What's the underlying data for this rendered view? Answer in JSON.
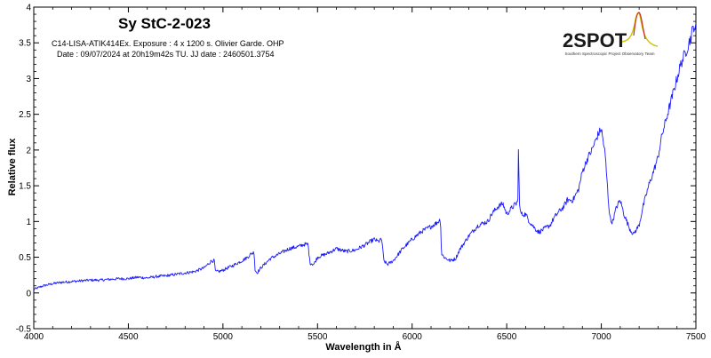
{
  "chart_data": {
    "type": "line",
    "title": "Sy StC-2-023",
    "subtitle_lines": [
      "C14-LISA-ATIK414Ex. Exposure : 4 x 1200 s. Olivier Garde. OHP",
      "Date : 09/07/2024 at 20h19m42s TU. JJ date : 2460501.3754"
    ],
    "xlabel": "Wavelength in Å",
    "ylabel": "Relative flux",
    "xlim": [
      4000,
      7500
    ],
    "ylim": [
      -0.5,
      4
    ],
    "x_ticks": [
      "4000",
      "4500",
      "5000",
      "5500",
      "6000",
      "6500",
      "7000",
      "7500"
    ],
    "y_ticks": [
      "-0.5",
      "0",
      "0.5",
      "1",
      "1.5",
      "2",
      "2.5",
      "3",
      "3.5",
      "4"
    ],
    "grid": false,
    "series_color": "#1a1aff",
    "x": [
      4000,
      4050,
      4100,
      4150,
      4200,
      4250,
      4300,
      4350,
      4400,
      4450,
      4500,
      4550,
      4600,
      4650,
      4700,
      4750,
      4800,
      4850,
      4900,
      4920,
      4940,
      4955,
      4960,
      4980,
      5000,
      5050,
      5100,
      5130,
      5150,
      5165,
      5170,
      5180,
      5200,
      5250,
      5300,
      5350,
      5400,
      5430,
      5450,
      5460,
      5480,
      5500,
      5550,
      5600,
      5650,
      5700,
      5750,
      5780,
      5800,
      5820,
      5840,
      5850,
      5870,
      5900,
      5950,
      6000,
      6050,
      6100,
      6130,
      6150,
      6155,
      6170,
      6200,
      6230,
      6250,
      6280,
      6300,
      6350,
      6400,
      6420,
      6450,
      6480,
      6500,
      6530,
      6550,
      6560,
      6563,
      6566,
      6570,
      6580,
      6600,
      6620,
      6650,
      6670,
      6700,
      6730,
      6750,
      6780,
      6800,
      6820,
      6850,
      6880,
      6900,
      6930,
      6950,
      6980,
      7000,
      7020,
      7040,
      7050,
      7060,
      7080,
      7100,
      7120,
      7150,
      7170,
      7200,
      7220,
      7250,
      7270,
      7300,
      7320,
      7350,
      7380,
      7400,
      7420,
      7450,
      7470,
      7490,
      7500
    ],
    "values": [
      0.05,
      0.1,
      0.13,
      0.15,
      0.16,
      0.17,
      0.18,
      0.18,
      0.19,
      0.2,
      0.2,
      0.22,
      0.21,
      0.23,
      0.24,
      0.26,
      0.28,
      0.3,
      0.35,
      0.4,
      0.45,
      0.45,
      0.3,
      0.3,
      0.32,
      0.38,
      0.45,
      0.5,
      0.55,
      0.57,
      0.32,
      0.28,
      0.35,
      0.48,
      0.55,
      0.62,
      0.65,
      0.68,
      0.68,
      0.42,
      0.4,
      0.5,
      0.55,
      0.62,
      0.58,
      0.6,
      0.67,
      0.72,
      0.75,
      0.72,
      0.75,
      0.45,
      0.4,
      0.45,
      0.62,
      0.75,
      0.86,
      0.93,
      0.98,
      1.03,
      0.55,
      0.5,
      0.45,
      0.48,
      0.6,
      0.72,
      0.8,
      0.95,
      1.0,
      1.1,
      1.2,
      1.25,
      1.1,
      1.2,
      1.25,
      1.3,
      2.33,
      1.3,
      1.15,
      1.1,
      1.1,
      1.0,
      0.9,
      0.85,
      0.9,
      0.95,
      1.05,
      1.15,
      1.2,
      1.3,
      1.3,
      1.45,
      1.7,
      1.9,
      2.0,
      2.2,
      2.3,
      1.95,
      1.2,
      1.0,
      1.0,
      1.2,
      1.3,
      1.1,
      0.9,
      0.82,
      0.95,
      1.2,
      1.5,
      1.65,
      1.9,
      2.2,
      2.5,
      2.8,
      3.0,
      3.2,
      3.4,
      3.55,
      3.75,
      3.65
    ]
  },
  "logo": {
    "text": "2SPOT",
    "tagline": "Southern Spectroscopic Project Observatory Team"
  }
}
